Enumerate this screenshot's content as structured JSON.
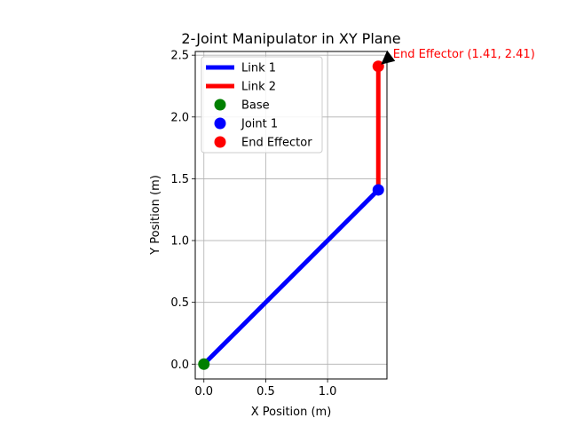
{
  "chart_data": {
    "type": "line",
    "title": "2-Joint Manipulator in XY Plane",
    "xlabel": "X Position (m)",
    "ylabel": "Y Position (m)",
    "xlim": [
      -0.07,
      1.48
    ],
    "ylim": [
      -0.12,
      2.53
    ],
    "xticks": [
      0.0,
      0.5,
      1.0
    ],
    "yticks": [
      0.0,
      0.5,
      1.0,
      1.5,
      2.0,
      2.5
    ],
    "xtick_labels": [
      "0.0",
      "0.5",
      "1.0"
    ],
    "ytick_labels": [
      "0.0",
      "0.5",
      "1.0",
      "1.5",
      "2.0",
      "2.5"
    ],
    "grid": true,
    "legend_placement": "upper-left",
    "series": [
      {
        "name": "Link 1",
        "kind": "line",
        "color": "#0000ff",
        "points": [
          [
            0.0,
            0.0
          ],
          [
            1.41,
            1.41
          ]
        ]
      },
      {
        "name": "Link 2",
        "kind": "line",
        "color": "#ff0000",
        "points": [
          [
            1.41,
            1.41
          ],
          [
            1.41,
            2.41
          ]
        ]
      },
      {
        "name": "Base",
        "kind": "marker",
        "color": "#008000",
        "points": [
          [
            0.0,
            0.0
          ]
        ]
      },
      {
        "name": "Joint 1",
        "kind": "marker",
        "color": "#0000ff",
        "points": [
          [
            1.41,
            1.41
          ]
        ]
      },
      {
        "name": "End Effector",
        "kind": "marker",
        "color": "#ff0000",
        "points": [
          [
            1.41,
            2.41
          ]
        ]
      }
    ],
    "annotation": {
      "text": "End Effector (1.41, 2.41)",
      "color": "#ff0000",
      "target": [
        1.41,
        2.41
      ],
      "text_at": [
        1.5,
        2.51
      ]
    }
  }
}
